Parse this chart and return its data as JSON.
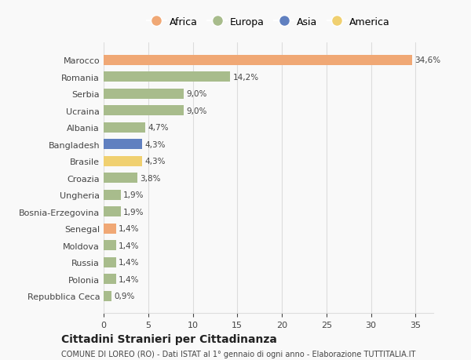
{
  "countries": [
    "Marocco",
    "Romania",
    "Serbia",
    "Ucraina",
    "Albania",
    "Bangladesh",
    "Brasile",
    "Croazia",
    "Ungheria",
    "Bosnia-Erzegovina",
    "Senegal",
    "Moldova",
    "Russia",
    "Polonia",
    "Repubblica Ceca"
  ],
  "values": [
    34.6,
    14.2,
    9.0,
    9.0,
    4.7,
    4.3,
    4.3,
    3.8,
    1.9,
    1.9,
    1.4,
    1.4,
    1.4,
    1.4,
    0.9
  ],
  "labels": [
    "34,6%",
    "14,2%",
    "9,0%",
    "9,0%",
    "4,7%",
    "4,3%",
    "4,3%",
    "3,8%",
    "1,9%",
    "1,9%",
    "1,4%",
    "1,4%",
    "1,4%",
    "1,4%",
    "0,9%"
  ],
  "continents": [
    "Africa",
    "Europa",
    "Europa",
    "Europa",
    "Europa",
    "Asia",
    "America",
    "Europa",
    "Europa",
    "Europa",
    "Africa",
    "Europa",
    "Europa",
    "Europa",
    "Europa"
  ],
  "colors": {
    "Africa": "#F0A875",
    "Europa": "#A8BC8C",
    "Asia": "#6080C0",
    "America": "#F0D070"
  },
  "legend_order": [
    "Africa",
    "Europa",
    "Asia",
    "America"
  ],
  "xlim": [
    0,
    37
  ],
  "xticks": [
    0,
    5,
    10,
    15,
    20,
    25,
    30,
    35
  ],
  "title": "Cittadini Stranieri per Cittadinanza",
  "subtitle": "COMUNE DI LOREO (RO) - Dati ISTAT al 1° gennaio di ogni anno - Elaborazione TUTTITALIA.IT",
  "bg_color": "#f9f9f9",
  "grid_color": "#dddddd"
}
